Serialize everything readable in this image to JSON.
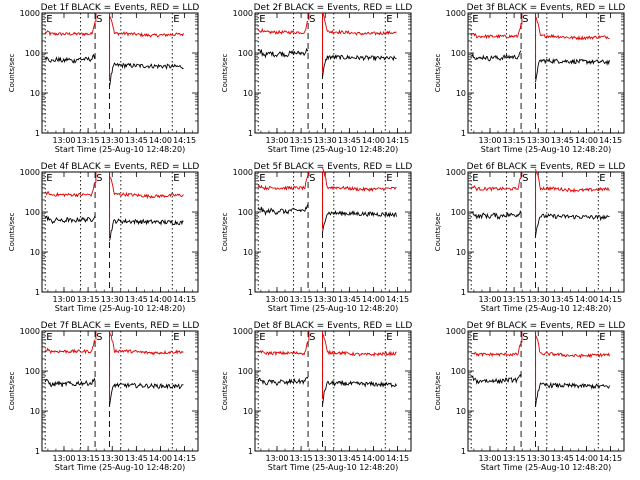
{
  "chart_data": {
    "type": "line",
    "layout": "3x3 grid of panels",
    "shared": {
      "title_suffix": "BLACK = Events, RED = LLD",
      "xlabel": "Start Time (25-Aug-10 12:48:20)",
      "ylabel": "Counts/sec",
      "y_scale": "log",
      "ylim": [
        1,
        1000
      ],
      "y_ticks": [
        1,
        10,
        100,
        1000
      ],
      "y_tick_labels": [
        "1",
        "10",
        "100",
        "1000"
      ],
      "x_range_minutes_after_start": [
        -2,
        95
      ],
      "x_ticks_minutes_after_start": [
        11.67,
        26.67,
        41.67,
        56.67,
        71.67,
        86.67
      ],
      "x_tick_labels": [
        "13:00",
        "13:15",
        "13:30",
        "13:45",
        "14:00",
        "14:15"
      ],
      "markers": [
        {
          "label": "E",
          "minutes": 0,
          "style": "dotted"
        },
        {
          "label": "",
          "minutes": 22,
          "style": "dotted"
        },
        {
          "label": "S",
          "minutes": 31,
          "style": "dashed"
        },
        {
          "label": "",
          "minutes": 40,
          "style": "dashed"
        },
        {
          "label": "",
          "minutes": 47,
          "style": "dotted"
        },
        {
          "label": "E",
          "minutes": 79,
          "style": "dotted"
        }
      ],
      "gap_minutes": [
        31,
        40
      ],
      "series_colors": {
        "events": "#000000",
        "lld": "#e00000"
      }
    },
    "panels": [
      {
        "title": "Det 1f",
        "lld_level": 300,
        "events_level": 50,
        "events_pre_level": 70
      },
      {
        "title": "Det 2f",
        "lld_level": 330,
        "events_level": 80,
        "events_pre_level": 100
      },
      {
        "title": "Det 3f",
        "lld_level": 260,
        "events_level": 65,
        "events_pre_level": 80
      },
      {
        "title": "Det 4f",
        "lld_level": 270,
        "events_level": 60,
        "events_pre_level": 65
      },
      {
        "title": "Det 5f",
        "lld_level": 400,
        "events_level": 95,
        "events_pre_level": 110
      },
      {
        "title": "Det 6f",
        "lld_level": 380,
        "events_level": 80,
        "events_pre_level": 85
      },
      {
        "title": "Det 7f",
        "lld_level": 310,
        "events_level": 45,
        "events_pre_level": 50
      },
      {
        "title": "Det 8f",
        "lld_level": 280,
        "events_level": 50,
        "events_pre_level": 55
      },
      {
        "title": "Det 9f",
        "lld_level": 260,
        "events_level": 45,
        "events_pre_level": 60
      }
    ]
  }
}
